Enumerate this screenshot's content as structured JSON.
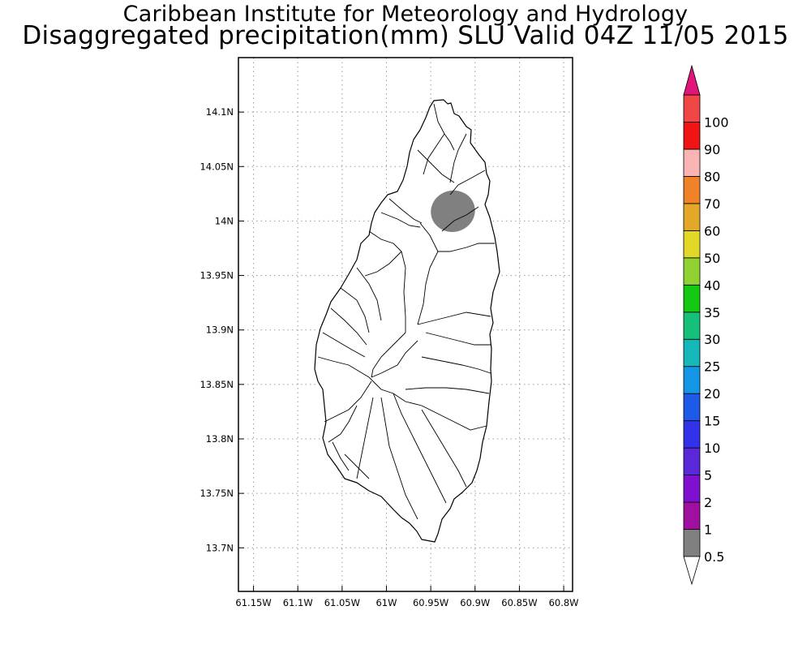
{
  "title": {
    "line1": "Caribbean Institute for Meteorology and Hydrology",
    "line2": "Disaggregated precipitation(mm) SLU Valid 04Z 11/05 2015"
  },
  "map": {
    "lon_range": [
      -61.167,
      -60.79
    ],
    "lat_range": [
      13.66,
      14.15
    ],
    "lon_ticks": [
      {
        "value": -61.15,
        "label": "61.15W"
      },
      {
        "value": -61.1,
        "label": "61.1W"
      },
      {
        "value": -61.05,
        "label": "61.05W"
      },
      {
        "value": -61.0,
        "label": "61W"
      },
      {
        "value": -60.95,
        "label": "60.95W"
      },
      {
        "value": -60.9,
        "label": "60.9W"
      },
      {
        "value": -60.85,
        "label": "60.85W"
      },
      {
        "value": -60.8,
        "label": "60.8W"
      }
    ],
    "lat_ticks": [
      {
        "value": 14.1,
        "label": "14.1N"
      },
      {
        "value": 14.05,
        "label": "14.05N"
      },
      {
        "value": 14.0,
        "label": "14N"
      },
      {
        "value": 13.95,
        "label": "13.95N"
      },
      {
        "value": 13.9,
        "label": "13.9N"
      },
      {
        "value": 13.85,
        "label": "13.85N"
      },
      {
        "value": 13.8,
        "label": "13.8N"
      },
      {
        "value": 13.75,
        "label": "13.75N"
      },
      {
        "value": 13.7,
        "label": "13.7N"
      }
    ],
    "grid": "dotted",
    "island": "Saint Lucia",
    "precip_areas": [
      {
        "center_lon": -60.925,
        "center_lat": 14.009,
        "radius_lon": 0.025,
        "radius_lat": 0.019,
        "category": "0.5-1",
        "color": "#808080"
      }
    ]
  },
  "colorbar": {
    "levels": [
      "0.5",
      "1",
      "2",
      "5",
      "10",
      "15",
      "20",
      "25",
      "30",
      "35",
      "40",
      "50",
      "60",
      "70",
      "80",
      "90",
      "100"
    ],
    "colors": [
      "#808080",
      "#a010a0",
      "#8010d0",
      "#5a28d8",
      "#3232ea",
      "#1e5ae8",
      "#1496e6",
      "#14b8b8",
      "#14c07a",
      "#14c814",
      "#90d232",
      "#e2d828",
      "#e4a828",
      "#f08228",
      "#fab4b4",
      "#f01414",
      "#f04646"
    ],
    "under_color": "#ffffff",
    "over_color": "#e0147a"
  }
}
